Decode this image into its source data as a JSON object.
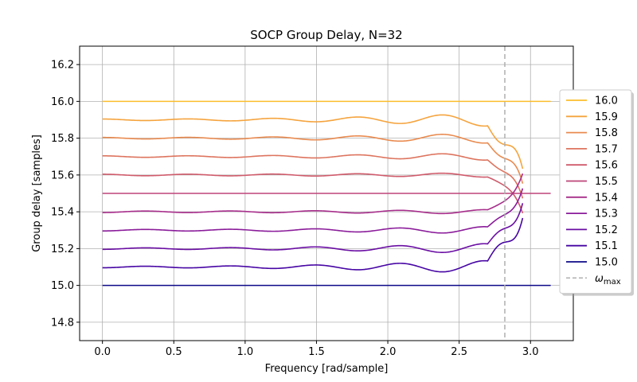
{
  "chart_data": {
    "type": "line",
    "title": "SOCP Group Delay, N=32",
    "xlabel": "Frequency [rad/sample]",
    "ylabel": "Group delay [samples]",
    "xlim": [
      -0.16,
      3.3
    ],
    "ylim": [
      14.7,
      16.3
    ],
    "xticks": [
      0.0,
      0.5,
      1.0,
      1.5,
      2.0,
      2.5,
      3.0
    ],
    "xtick_labels": [
      "0.0",
      "0.5",
      "1.0",
      "1.5",
      "2.0",
      "2.5",
      "3.0"
    ],
    "yticks": [
      14.8,
      15.0,
      15.2,
      15.4,
      15.6,
      15.8,
      16.0,
      16.2
    ],
    "ytick_labels": [
      "14.8",
      "15.0",
      "15.2",
      "15.4",
      "15.6",
      "15.8",
      "16.0",
      "16.2"
    ],
    "grid": true,
    "legend_position": "right-outside",
    "omega_max": 2.82,
    "omega_max_label": "ω",
    "omega_max_sub": "max",
    "series": [
      {
        "name": "16.0",
        "target": 16.0,
        "color": "#fbbd2b"
      },
      {
        "name": "15.9",
        "target": 15.9,
        "color": "#f5a43e"
      },
      {
        "name": "15.8",
        "target": 15.8,
        "color": "#e98b50"
      },
      {
        "name": "15.7",
        "target": 15.7,
        "color": "#dd745e"
      },
      {
        "name": "15.6",
        "target": 15.6,
        "color": "#cf5b6b"
      },
      {
        "name": "15.5",
        "target": 15.5,
        "color": "#bd4479"
      },
      {
        "name": "15.4",
        "target": 15.4,
        "color": "#a72e8b"
      },
      {
        "name": "15.3",
        "target": 15.3,
        "color": "#8a1c9a"
      },
      {
        "name": "15.2",
        "target": 15.2,
        "color": "#6a0ea3"
      },
      {
        "name": "15.1",
        "target": 15.1,
        "color": "#4706a4"
      },
      {
        "name": "15.0",
        "target": 15.0,
        "color": "#0d0887"
      }
    ]
  }
}
